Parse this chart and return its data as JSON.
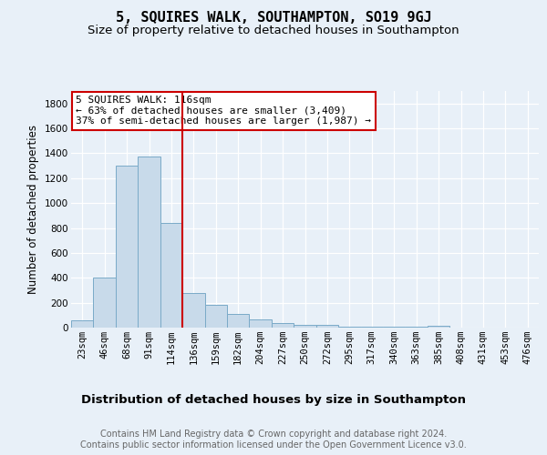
{
  "title": "5, SQUIRES WALK, SOUTHAMPTON, SO19 9GJ",
  "subtitle": "Size of property relative to detached houses in Southampton",
  "xlabel": "Distribution of detached houses by size in Southampton",
  "ylabel": "Number of detached properties",
  "categories": [
    "23sqm",
    "46sqm",
    "68sqm",
    "91sqm",
    "114sqm",
    "136sqm",
    "159sqm",
    "182sqm",
    "204sqm",
    "227sqm",
    "250sqm",
    "272sqm",
    "295sqm",
    "317sqm",
    "340sqm",
    "363sqm",
    "385sqm",
    "408sqm",
    "431sqm",
    "453sqm",
    "476sqm"
  ],
  "values": [
    55,
    400,
    1300,
    1375,
    840,
    280,
    185,
    110,
    65,
    35,
    25,
    20,
    10,
    8,
    5,
    5,
    15,
    2,
    2,
    2,
    2
  ],
  "bar_color": "#c8daea",
  "bar_edge_color": "#7aaac8",
  "vline_x_index": 4,
  "vline_color": "#cc0000",
  "annotation_text": "5 SQUIRES WALK: 116sqm\n← 63% of detached houses are smaller (3,409)\n37% of semi-detached houses are larger (1,987) →",
  "annotation_box_color": "#ffffff",
  "annotation_box_edge_color": "#cc0000",
  "ylim": [
    0,
    1900
  ],
  "yticks": [
    0,
    200,
    400,
    600,
    800,
    1000,
    1200,
    1400,
    1600,
    1800
  ],
  "footer_text": "Contains HM Land Registry data © Crown copyright and database right 2024.\nContains public sector information licensed under the Open Government Licence v3.0.",
  "background_color": "#e8f0f8",
  "plot_bg_color": "#e8f0f8",
  "grid_color": "#ffffff",
  "title_fontsize": 11,
  "subtitle_fontsize": 9.5,
  "xlabel_fontsize": 9.5,
  "ylabel_fontsize": 8.5,
  "footer_fontsize": 7,
  "annotation_fontsize": 8,
  "tick_fontsize": 7.5
}
